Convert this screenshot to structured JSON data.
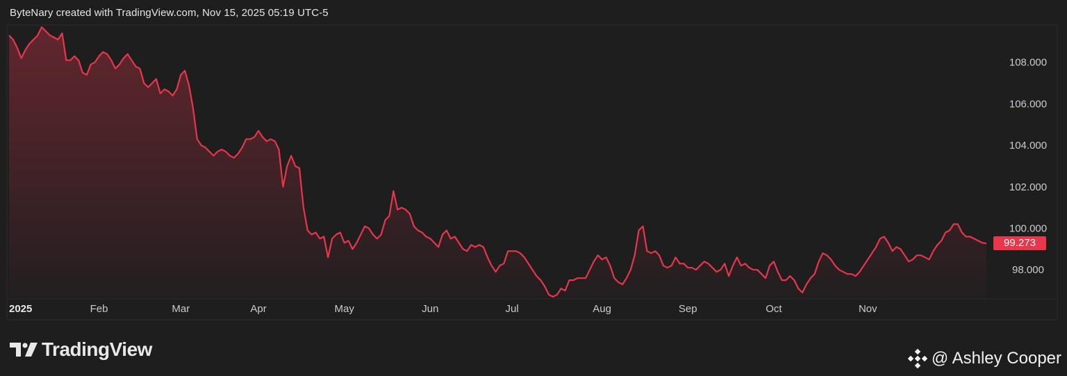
{
  "header": {
    "attribution": "ByteNary created with TradingView.com, Nov 15, 2025 05:19 UTC-5"
  },
  "brand": {
    "logo_text": "TradingView"
  },
  "watermark": {
    "text": "@ Ashley Cooper"
  },
  "colors": {
    "background": "#1e1e1f",
    "line": "#e8364a",
    "badge": "#e8364a",
    "grid_frame": "#2c2c2e"
  },
  "chart_data": {
    "type": "area",
    "title": "",
    "xlabel": "",
    "ylabel": "",
    "ylim": [
      96.6,
      109.8
    ],
    "yticks": [
      "108.000",
      "106.000",
      "104.000",
      "102.000",
      "100.000",
      "98.000"
    ],
    "ytick_values": [
      108,
      106,
      104,
      102,
      100,
      98
    ],
    "xticks": [
      {
        "label": "2025",
        "i": 0,
        "year": true
      },
      {
        "label": "Feb",
        "i": 22
      },
      {
        "label": "Mar",
        "i": 42
      },
      {
        "label": "Apr",
        "i": 61
      },
      {
        "label": "May",
        "i": 82
      },
      {
        "label": "Jun",
        "i": 103
      },
      {
        "label": "Jul",
        "i": 123
      },
      {
        "label": "Aug",
        "i": 145
      },
      {
        "label": "Sep",
        "i": 166
      },
      {
        "label": "Oct",
        "i": 187
      },
      {
        "label": "Nov",
        "i": 210
      }
    ],
    "last_price_label": "99.273",
    "last_price": 99.273,
    "series": [
      {
        "values": [
          109.3,
          109.1,
          108.7,
          108.2,
          108.6,
          108.9,
          109.1,
          109.3,
          109.7,
          109.5,
          109.3,
          109.2,
          109.1,
          109.4,
          108.1,
          108.1,
          108.3,
          108.1,
          107.5,
          107.4,
          107.9,
          108.0,
          108.3,
          108.5,
          108.4,
          108.1,
          107.7,
          107.9,
          108.2,
          108.4,
          108.1,
          107.8,
          107.7,
          107.0,
          106.8,
          107.0,
          107.2,
          106.5,
          106.7,
          106.6,
          106.4,
          106.7,
          107.4,
          107.6,
          106.9,
          105.8,
          104.3,
          104.0,
          103.9,
          103.7,
          103.5,
          103.7,
          103.8,
          103.7,
          103.5,
          103.4,
          103.6,
          103.9,
          104.3,
          104.3,
          104.4,
          104.7,
          104.4,
          104.2,
          104.3,
          104.2,
          103.8,
          102.0,
          103.0,
          103.5,
          103.0,
          102.9,
          101.0,
          99.9,
          99.7,
          99.8,
          99.5,
          99.6,
          98.6,
          99.5,
          99.7,
          99.8,
          99.3,
          99.4,
          99.0,
          99.3,
          99.7,
          100.1,
          100.0,
          99.7,
          99.5,
          99.7,
          100.4,
          100.6,
          101.8,
          100.9,
          101.0,
          100.9,
          100.7,
          100.1,
          99.9,
          99.8,
          99.6,
          99.5,
          99.3,
          99.1,
          99.7,
          99.9,
          99.5,
          99.6,
          99.3,
          99.0,
          98.9,
          99.2,
          99.1,
          99.2,
          99.1,
          98.6,
          98.2,
          97.9,
          98.2,
          98.3,
          98.9,
          98.9,
          98.9,
          98.8,
          98.6,
          98.3,
          98.0,
          97.7,
          97.5,
          97.2,
          96.8,
          96.7,
          96.8,
          97.1,
          97.0,
          97.5,
          97.5,
          97.6,
          97.6,
          97.6,
          98.0,
          98.4,
          98.7,
          98.5,
          98.6,
          98.2,
          97.6,
          97.4,
          97.3,
          97.6,
          98.0,
          98.7,
          99.9,
          100.1,
          98.9,
          98.8,
          98.9,
          98.7,
          98.2,
          98.1,
          98.2,
          98.6,
          98.3,
          98.3,
          98.1,
          98.1,
          98.0,
          98.2,
          98.4,
          98.3,
          98.1,
          97.9,
          98.0,
          98.3,
          97.7,
          98.2,
          98.6,
          98.2,
          98.3,
          98.1,
          98.0,
          98.0,
          97.8,
          97.6,
          98.2,
          98.4,
          97.9,
          97.5,
          97.5,
          97.7,
          97.5,
          97.1,
          96.9,
          97.3,
          97.6,
          97.8,
          98.4,
          98.8,
          98.7,
          98.5,
          98.2,
          98.0,
          97.9,
          97.8,
          97.8,
          97.7,
          97.9,
          98.2,
          98.5,
          98.8,
          99.1,
          99.5,
          99.6,
          99.3,
          98.9,
          99.1,
          99.0,
          98.7,
          98.4,
          98.5,
          98.7,
          98.7,
          98.6,
          98.5,
          98.9,
          99.2,
          99.4,
          99.8,
          99.9,
          100.2,
          100.2,
          99.8,
          99.6,
          99.6,
          99.5,
          99.4,
          99.3,
          99.273
        ]
      }
    ]
  }
}
